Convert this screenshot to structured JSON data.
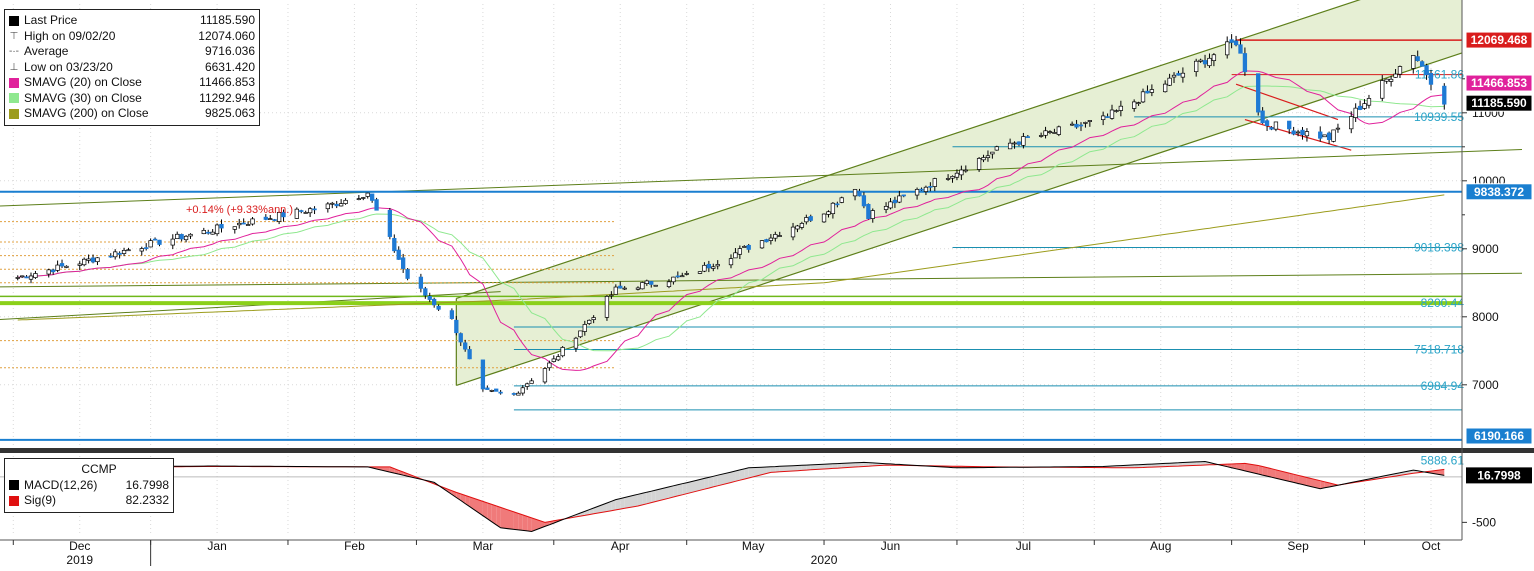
{
  "colors": {
    "candle_up": "#ffffff",
    "candle_down": "#1f7ad4",
    "sma20": "#e0219b",
    "sma30": "#8fe88f",
    "sma200": "#9c9c1c",
    "channel": "#5d7f1a",
    "channel_fill": "#e6efd4",
    "macd": "#000000",
    "signal": "#e01010",
    "hline": "#1a8fb0",
    "red_level": "#d91c1c"
  },
  "legend": {
    "items": [
      {
        "label": "Last Price",
        "value": "11185.590",
        "glyph": "square",
        "color": "#000000"
      },
      {
        "label": "High on 09/02/20",
        "value": "12074.060",
        "glyph": "T"
      },
      {
        "label": "Average",
        "value": "9716.036",
        "glyph": "dash"
      },
      {
        "label": "Low on 03/23/20",
        "value": "6631.420",
        "glyph": "L"
      },
      {
        "label": "SMAVG (20)  on Close",
        "value": "11466.853",
        "glyph": "square",
        "color": "#e0219b"
      },
      {
        "label": "SMAVG (30)  on Close",
        "value": "11292.946",
        "glyph": "square",
        "color": "#8fe88f"
      },
      {
        "label": "SMAVG (200)  on Close",
        "value": "9825.063",
        "glyph": "square",
        "color": "#9c9c1c"
      }
    ]
  },
  "macd_legend": {
    "title": "CCMP",
    "items": [
      {
        "label": "MACD(12,26)",
        "value": "16.7998",
        "color": "#000000"
      },
      {
        "label": "Sig(9)",
        "value": "82.2332",
        "color": "#e01010"
      }
    ]
  },
  "annotation": "+0.14% (+9.33%ann.)",
  "price_tags": [
    {
      "text": "12069.468",
      "value": 12069.468,
      "bg": "#d91c1c"
    },
    {
      "text": "11466.853",
      "value": 11466.853,
      "bg": "#e0219b"
    },
    {
      "text": "11185.590",
      "value": 11185.59,
      "bg": "#000000"
    },
    {
      "text": "9838.372",
      "value": 9838.372,
      "bg": "#1a7fd0"
    },
    {
      "text": "6190.166",
      "value": 6190.166,
      "bg": "#1a7fd0"
    }
  ],
  "macd_tag": {
    "text": "16.7998",
    "bg": "#000000"
  },
  "level_labels": [
    {
      "text": "11561.86",
      "value": 11561.86
    },
    {
      "text": "10939.55",
      "value": 10939.55
    },
    {
      "text": "9018.398",
      "value": 9018.398
    },
    {
      "text": "8200.44",
      "value": 8200.44
    },
    {
      "text": "7518.718",
      "value": 7518.718
    },
    {
      "text": "6984.94",
      "value": 6984.94
    },
    {
      "text": "5888.61",
      "value": 5888.61
    }
  ],
  "chart_data": [
    {
      "type": "candlestick",
      "title": "",
      "ylim": [
        6100,
        12600
      ],
      "y_ticks": [
        7000,
        8000,
        9000,
        10000,
        11000
      ],
      "x_labels": [
        "Dec",
        "Jan",
        "Feb",
        "Mar",
        "Apr",
        "May",
        "Jun",
        "Jul",
        "Aug",
        "Sep",
        "Oct"
      ],
      "year_labels": [
        "2019",
        "2020"
      ],
      "close_anchors": {
        "dates": [
          "2019-12-02",
          "2019-12-16",
          "2020-01-02",
          "2020-01-21",
          "2020-02-10",
          "2020-02-19",
          "2020-02-28",
          "2020-03-09",
          "2020-03-16",
          "2020-03-23",
          "2020-04-01",
          "2020-04-15",
          "2020-05-01",
          "2020-06-01",
          "2020-06-08",
          "2020-06-11",
          "2020-07-01",
          "2020-07-13",
          "2020-08-03",
          "2020-09-02",
          "2020-09-08",
          "2020-09-23",
          "2020-10-12",
          "2020-10-19"
        ],
        "values": [
          8580,
          8800,
          9090,
          9370,
          9630,
          9830,
          8570,
          7950,
          6900,
          6860,
          7360,
          8400,
          8600,
          9550,
          9920,
          9500,
          10150,
          10550,
          10900,
          12050,
          10850,
          10630,
          11880,
          11185.59
        ]
      },
      "ohlc_summary": {
        "high": 12074.06,
        "high_date": "09/02/20",
        "low": 6631.42,
        "low_date": "03/23/20",
        "average": 9716.036,
        "last": 11185.59
      },
      "series": [
        {
          "name": "SMAVG (20)  on Close",
          "last": 11466.853
        },
        {
          "name": "SMAVG (30)  on Close",
          "last": 11292.946
        },
        {
          "name": "SMAVG (200)  on Close",
          "last": 9825.063
        }
      ],
      "horizontal_levels": [
        12069.468,
        11561.86,
        10939.55,
        10500,
        9838.372,
        9018.398,
        8200.44,
        7850,
        7518.718,
        6984.94,
        6631.42,
        6190.166
      ]
    },
    {
      "type": "line",
      "title": "CCMP",
      "ylim": [
        -650,
        230
      ],
      "y_ticks": [
        -500
      ],
      "series": [
        {
          "name": "MACD(12,26)",
          "last": 16.7998,
          "anchors": {
            "dates": [
              "2019-12-02",
              "2020-01-15",
              "2020-02-19",
              "2020-03-05",
              "2020-03-20",
              "2020-03-27",
              "2020-04-15",
              "2020-05-15",
              "2020-06-10",
              "2020-07-01",
              "2020-08-03",
              "2020-08-26",
              "2020-09-21",
              "2020-10-12",
              "2020-10-19"
            ],
            "values": [
              105,
              120,
              110,
              -60,
              -560,
              -600,
              -250,
              100,
              160,
              100,
              115,
              170,
              -130,
              75,
              16.7998
            ]
          }
        },
        {
          "name": "Sig(9)",
          "last": 82.2332,
          "anchors": {
            "dates": [
              "2019-12-02",
              "2020-01-15",
              "2020-02-24",
              "2020-03-10",
              "2020-03-30",
              "2020-04-20",
              "2020-05-20",
              "2020-06-15",
              "2020-07-10",
              "2020-08-10",
              "2020-09-05",
              "2020-09-25",
              "2020-10-12",
              "2020-10-19"
            ],
            "values": [
              100,
              115,
              110,
              -170,
              -500,
              -320,
              50,
              130,
              110,
              100,
              150,
              -90,
              40,
              82.2332
            ]
          }
        }
      ]
    }
  ]
}
